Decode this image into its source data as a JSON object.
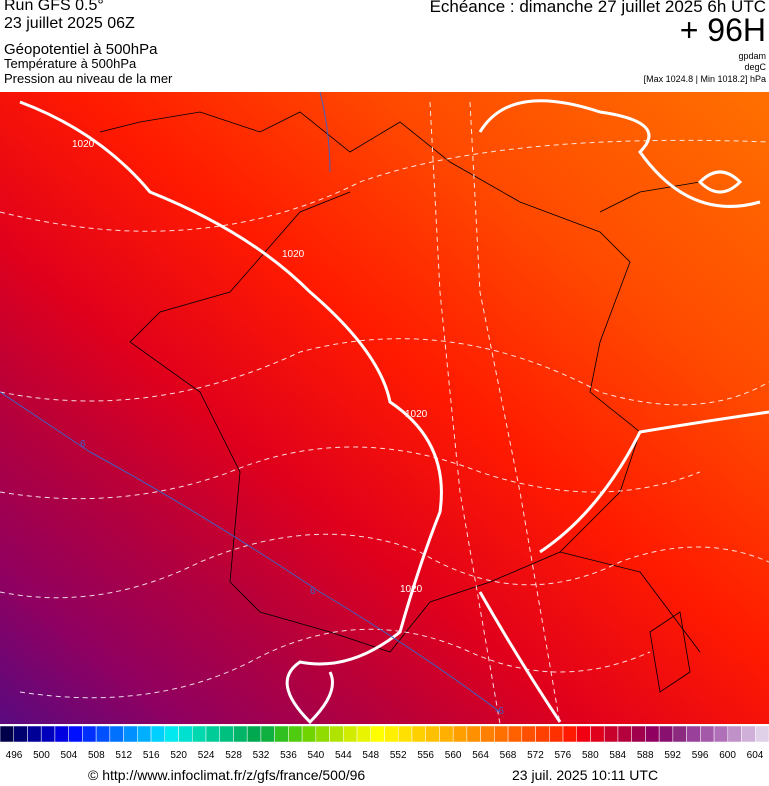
{
  "header": {
    "run": "Run GFS 0.5°",
    "date": "23 juillet 2025 06Z",
    "field1": "Géopotentiel à 500hPa",
    "field2": "Température à 500hPa",
    "field3": "Pression au niveau de la mer",
    "echeance": "Echéance : dimanche 27 juillet 2025 6h UTC",
    "lead": "+ 96H",
    "unit1": "gpdam",
    "unit2": "degC",
    "range": "[Max 1024.8 | Min 1018.2] hPa"
  },
  "map": {
    "contour_labels": [
      "1020",
      "1020",
      "1020",
      "1020",
      "6",
      "6",
      "-6"
    ]
  },
  "colorbar": {
    "labels": [
      496,
      500,
      504,
      508,
      512,
      516,
      520,
      524,
      528,
      532,
      536,
      540,
      544,
      548,
      552,
      556,
      560,
      564,
      568,
      572,
      576,
      580,
      584,
      588,
      592,
      596,
      600,
      604
    ],
    "colors": [
      "#00004a",
      "#000070",
      "#000096",
      "#0000bc",
      "#0000e0",
      "#0010ff",
      "#0030ff",
      "#0050ff",
      "#0070ff",
      "#0090ff",
      "#00b0ff",
      "#00d0ff",
      "#00e8f0",
      "#00e0d0",
      "#00d8b0",
      "#00cc98",
      "#00c080",
      "#00b468",
      "#00a850",
      "#10b040",
      "#30c020",
      "#50cc10",
      "#70d400",
      "#90dc00",
      "#b0e400",
      "#d0ec00",
      "#e8f400",
      "#ffff00",
      "#fff000",
      "#ffe000",
      "#ffd000",
      "#ffc000",
      "#ffb000",
      "#ffa000",
      "#ff9000",
      "#ff8000",
      "#ff7000",
      "#ff6000",
      "#ff5000",
      "#ff4000",
      "#ff3000",
      "#ff1a00",
      "#f00010",
      "#e0001c",
      "#c8002c",
      "#b4003c",
      "#a0004c",
      "#900060",
      "#8a1070",
      "#8c2a80",
      "#98409a",
      "#a458a8",
      "#b070b8",
      "#c090c8",
      "#d0b0d8",
      "#e0d0e8"
    ]
  },
  "footer": {
    "url": "© http://www.infoclimat.fr/z/gfs/france/500/96",
    "timestamp": "23 juil. 2025 10:11 UTC"
  }
}
